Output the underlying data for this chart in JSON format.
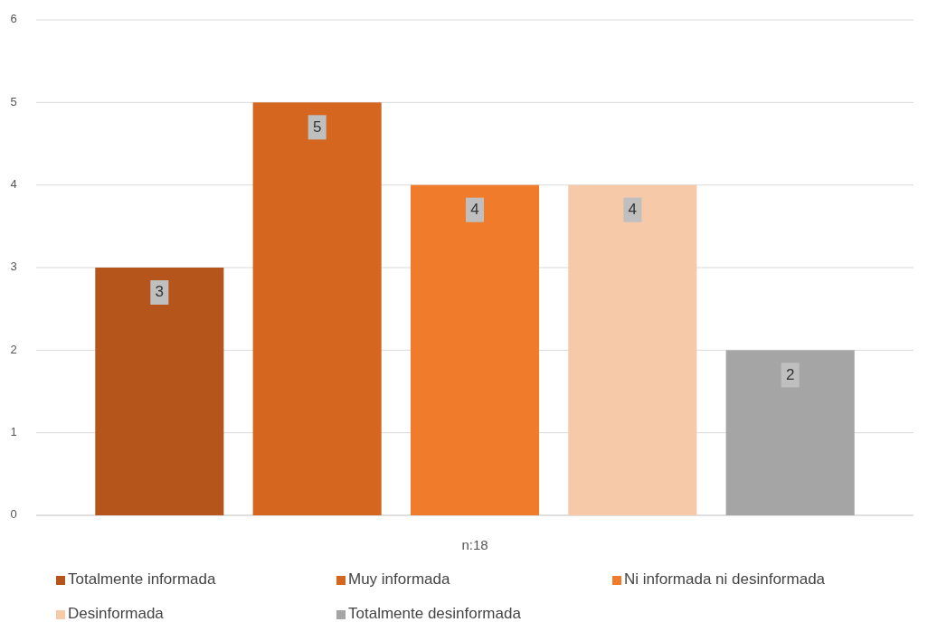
{
  "chart_data": {
    "type": "bar",
    "categories": [
      "n:18"
    ],
    "series": [
      {
        "name": "Totalmente informada",
        "color": "#b5551c",
        "values": [
          3
        ]
      },
      {
        "name": "Muy informada",
        "color": "#d4661f",
        "values": [
          5
        ]
      },
      {
        "name": "Ni informada ni desinformada",
        "color": "#f07b2a",
        "values": [
          4
        ]
      },
      {
        "name": "Desinformada",
        "color": "#f6c9a8",
        "values": [
          4
        ]
      },
      {
        "name": "Totalmente desinformada",
        "color": "#a5a5a5",
        "values": [
          2
        ]
      }
    ],
    "ylim": [
      0,
      6
    ],
    "yticks": [
      0,
      1,
      2,
      3,
      4,
      5,
      6
    ],
    "grid": "y",
    "legend": "bottom",
    "data_labels": true
  }
}
